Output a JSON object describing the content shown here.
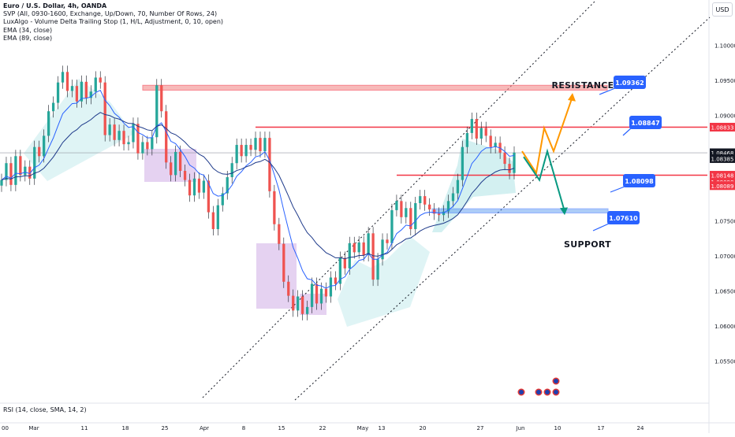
{
  "legend": {
    "title": "Euro / U.S. Dollar, 4h, OANDA",
    "indicators": [
      "SVP (All, 0930-1600, Exchange, Up/Down, 70, Number Of Rows, 24)",
      "LuxAlgo - Volume Delta Trailing Stop (1, H/L, Adjustment, 0, 10, open)",
      "EMA (34, close)",
      "EMA (89, close)"
    ]
  },
  "currency_button": "USD",
  "rsi_label": "RSI (14, close, SMA, 14, 2)",
  "colors": {
    "up": "#26a69a",
    "down": "#ef5350",
    "zone_resistance": "#f28b8b",
    "zone_support": "#5b9bf0",
    "line_red": "#f23645",
    "callout_blue": "#2962ff",
    "orange": "#ff9800",
    "teal": "#089981",
    "ema": "#2962ff",
    "channel": "#131722",
    "purple_box": "#b47fd8"
  },
  "chart_data": {
    "type": "candlestick",
    "symbol": "Euro / U.S. Dollar",
    "timeframe": "4h",
    "y_ticks": [
      1.1,
      1.095,
      1.09,
      1.085,
      1.08,
      1.075,
      1.07,
      1.065,
      1.06,
      1.055
    ],
    "y_tick_labels": [
      "1.10000",
      "1.09500",
      "1.09000",
      "1.08500",
      "1.08000",
      "1.07500",
      "1.07000",
      "1.06500",
      "1.06000",
      "1.05500"
    ],
    "x_ticks": [
      "00",
      "Mar",
      "11",
      "18",
      "25",
      "Apr",
      "8",
      "15",
      "22",
      "May",
      "13",
      "20",
      "27",
      "Jun",
      "10",
      "17",
      "24"
    ],
    "price_labels": [
      {
        "text": "1.08833",
        "value": 1.08833,
        "kind": "red"
      },
      {
        "text": "1.08468",
        "value": 1.08468,
        "kind": "dark"
      },
      {
        "text": "1.08385",
        "value": 1.08385,
        "kind": "dark"
      },
      {
        "text": "1.08148",
        "value": 1.08148,
        "kind": "red"
      },
      {
        "text": "1.08098",
        "value": 1.08098,
        "kind": "red"
      },
      {
        "text": "1.08089",
        "value": 1.08089,
        "kind": "red"
      }
    ],
    "callouts": [
      {
        "text": "1.09362",
        "value": 1.09362
      },
      {
        "text": "1.08847",
        "value": 1.08847
      },
      {
        "text": "1.08098",
        "value": 1.08098
      },
      {
        "text": "1.07610",
        "value": 1.0761
      }
    ],
    "annotations": [
      "RESISTANCE",
      "SUPPORT"
    ],
    "resistance_zone": [
      1.0936,
      1.0943
    ],
    "support_zone": [
      1.0761,
      1.0767
    ],
    "levels": [
      1.08833,
      1.08148
    ],
    "current_price": 1.08468,
    "close_series": [
      1.0808,
      1.0832,
      1.0801,
      1.0842,
      1.0815,
      1.0827,
      1.081,
      1.0855,
      1.0842,
      1.0871,
      1.0906,
      1.0918,
      1.0947,
      1.0962,
      1.0935,
      1.0942,
      1.092,
      1.0948,
      1.0925,
      1.0934,
      1.0954,
      1.0947,
      1.0872,
      1.0887,
      1.0865,
      1.0878,
      1.0859,
      1.0862,
      1.0888,
      1.0846,
      1.0862,
      1.0852,
      1.0869,
      1.0943,
      1.0906,
      1.0833,
      1.0815,
      1.0848,
      1.0821,
      1.0808,
      1.0786,
      1.081,
      1.079,
      1.0807,
      1.0762,
      1.0738,
      1.0772,
      1.0789,
      1.0812,
      1.0832,
      1.0858,
      1.0842,
      1.0858,
      1.0851,
      1.0868,
      1.0849,
      1.0868,
      1.0792,
      1.0745,
      1.0717,
      1.0663,
      1.0643,
      1.0622,
      1.0642,
      1.0617,
      1.0627,
      1.066,
      1.0632,
      1.0653,
      1.0642,
      1.0669,
      1.066,
      1.0697,
      1.0682,
      1.0718,
      1.0705,
      1.0719,
      1.0701,
      1.0732,
      1.0666,
      1.0695,
      1.0723,
      1.0718,
      1.0765,
      1.0778,
      1.0755,
      1.0768,
      1.0738,
      1.0775,
      1.0785,
      1.0773,
      1.0766,
      1.076,
      1.0758,
      1.0763,
      1.0778,
      1.0789,
      1.0808,
      1.0855,
      1.0875,
      1.0895,
      1.0867,
      1.0882,
      1.0871,
      1.0855,
      1.0861,
      1.0847,
      1.0831,
      1.0818,
      1.0847
    ],
    "forecast_orange": [
      [
        1.0849,
        "t0"
      ],
      [
        1.0818,
        "t1"
      ],
      [
        1.0882,
        "t2"
      ],
      [
        1.0849,
        "t3"
      ],
      [
        1.0927,
        "t4"
      ]
    ],
    "forecast_teal": [
      [
        1.0841,
        "t1"
      ],
      [
        1.0808,
        "t2"
      ],
      [
        1.0849,
        "t3"
      ],
      [
        1.0763,
        "t4"
      ]
    ]
  }
}
